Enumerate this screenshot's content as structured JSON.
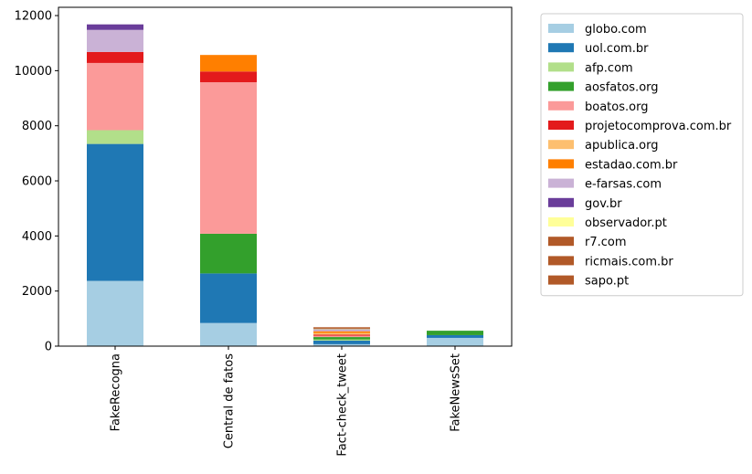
{
  "chart_data": {
    "type": "bar",
    "stacked": true,
    "categories": [
      "FakeRecogna",
      "Central de fatos",
      "Fact-check_tweet",
      "FakeNewsSet"
    ],
    "ylim": [
      0,
      12300
    ],
    "yticks": [
      0,
      2000,
      4000,
      6000,
      8000,
      10000,
      12000
    ],
    "grid": false,
    "legend_position": "outside right",
    "series": [
      {
        "name": "globo.com",
        "color": "#a6cee3",
        "values": [
          2370,
          840,
          70,
          300
        ]
      },
      {
        "name": "uol.com.br",
        "color": "#1f78b4",
        "values": [
          4970,
          1800,
          130,
          100
        ]
      },
      {
        "name": "afp.com",
        "color": "#b2df8a",
        "values": [
          500,
          0,
          40,
          0
        ]
      },
      {
        "name": "aosfatos.org",
        "color": "#33a02c",
        "values": [
          0,
          1440,
          90,
          160
        ]
      },
      {
        "name": "boatos.org",
        "color": "#fb9a99",
        "values": [
          2440,
          5500,
          50,
          0
        ]
      },
      {
        "name": "projetocomprova.com.br",
        "color": "#e31a1c",
        "values": [
          400,
          390,
          40,
          0
        ]
      },
      {
        "name": "apublica.org",
        "color": "#fdbf6f",
        "values": [
          0,
          0,
          60,
          0
        ]
      },
      {
        "name": "estadao.com.br",
        "color": "#ff7f00",
        "values": [
          0,
          600,
          60,
          0
        ]
      },
      {
        "name": "e-farsas.com",
        "color": "#cab2d6",
        "values": [
          800,
          0,
          50,
          0
        ]
      },
      {
        "name": "gov.br",
        "color": "#6a3d9a",
        "values": [
          200,
          0,
          20,
          0
        ]
      },
      {
        "name": "observador.pt",
        "color": "#ffff99",
        "values": [
          0,
          0,
          20,
          0
        ]
      },
      {
        "name": "r7.com",
        "color": "#b15928",
        "values": [
          0,
          0,
          20,
          0
        ]
      },
      {
        "name": "ricmais.com.br",
        "color": "#b15928",
        "values": [
          0,
          0,
          20,
          0
        ]
      },
      {
        "name": "sapo.pt",
        "color": "#b15928",
        "values": [
          0,
          0,
          20,
          0
        ]
      }
    ]
  }
}
